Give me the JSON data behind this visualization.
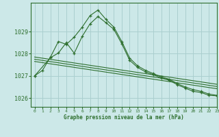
{
  "title": "Graphe pression niveau de la mer (hPa)",
  "background_color": "#cce8e8",
  "grid_color": "#aacfcf",
  "line_color": "#2d6e2d",
  "xlim": [
    -0.5,
    23
  ],
  "ylim": [
    1025.6,
    1030.3
  ],
  "yticks": [
    1026,
    1027,
    1028,
    1029
  ],
  "xticks": [
    0,
    1,
    2,
    3,
    4,
    5,
    6,
    7,
    8,
    9,
    10,
    11,
    12,
    13,
    14,
    15,
    16,
    17,
    18,
    19,
    20,
    21,
    22,
    23
  ],
  "series1_x": [
    0,
    1,
    2,
    3,
    4,
    5,
    6,
    7,
    8,
    9,
    10,
    11,
    12,
    13,
    14,
    15,
    16,
    17,
    18,
    19,
    20,
    21,
    22,
    23
  ],
  "series1_y": [
    1027.0,
    1027.25,
    1027.85,
    1028.55,
    1028.42,
    1028.75,
    1029.2,
    1029.72,
    1029.97,
    1029.55,
    1029.2,
    1028.55,
    1027.8,
    1027.45,
    1027.25,
    1027.1,
    1026.95,
    1026.85,
    1026.65,
    1026.5,
    1026.38,
    1026.3,
    1026.18,
    1026.12
  ],
  "series2_x": [
    0,
    2,
    3,
    4,
    5,
    6,
    7,
    8,
    9,
    10,
    11,
    12,
    13,
    14,
    15,
    16,
    17,
    18,
    19,
    20,
    21,
    22,
    23
  ],
  "series2_y": [
    1027.0,
    1027.82,
    1028.03,
    1028.5,
    1028.02,
    1028.78,
    1029.35,
    1029.68,
    1029.4,
    1029.1,
    1028.45,
    1027.7,
    1027.38,
    1027.18,
    1027.05,
    1026.9,
    1026.8,
    1026.6,
    1026.45,
    1026.3,
    1026.25,
    1026.12,
    1026.1
  ],
  "trend_lines": [
    {
      "x": [
        0,
        23
      ],
      "y": [
        1027.85,
        1026.62
      ]
    },
    {
      "x": [
        0,
        23
      ],
      "y": [
        1027.75,
        1026.52
      ]
    },
    {
      "x": [
        0,
        23
      ],
      "y": [
        1027.65,
        1026.42
      ]
    }
  ]
}
